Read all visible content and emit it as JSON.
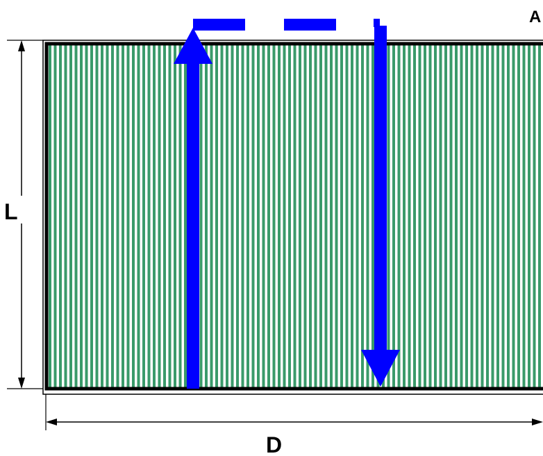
{
  "labels": {
    "corner": "A",
    "length": "L",
    "width": "D"
  },
  "colors": {
    "background": "#ffffff",
    "stripe_green": "#3a9a6a",
    "stripe_white": "#ffffff",
    "frame": "#000000",
    "flow_arrow": "#0000ff",
    "dimension_line": "#000000"
  },
  "pattern": "vertical-stripes",
  "flow_path": {
    "description_icons": [
      "flow-up-arrow-icon",
      "flow-dashed-crossover-icon",
      "flow-down-arrow-icon"
    ]
  }
}
